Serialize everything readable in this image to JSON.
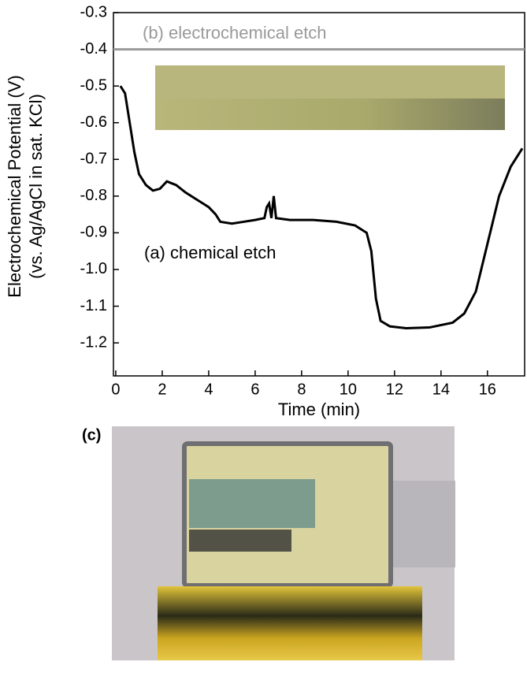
{
  "chart_data": {
    "type": "line",
    "xlabel": "Time (min)",
    "ylabel": [
      "Electrochemical Potential (V)",
      "(vs. Ag/AgCl in sat. KCl)"
    ],
    "xlim": [
      -0.1,
      17.6
    ],
    "ylim": [
      -1.29,
      -0.3
    ],
    "xticks": [
      0,
      2,
      4,
      6,
      8,
      10,
      12,
      14,
      16
    ],
    "yticks": [
      -0.3,
      -0.4,
      -0.5,
      -0.6,
      -0.7,
      -0.8,
      -0.9,
      {
        "value": -1,
        "label": "-1.0"
      },
      -1.1,
      -1.2
    ],
    "series": [
      {
        "name": "(a) chemical etch",
        "color": "#000000",
        "x": [
          0.2,
          0.4,
          0.6,
          0.8,
          1.0,
          1.3,
          1.6,
          1.9,
          2.2,
          2.6,
          3.0,
          3.5,
          4.0,
          4.3,
          4.5,
          5.0,
          5.5,
          6.0,
          6.4,
          6.5,
          6.6,
          6.7,
          6.8,
          6.9,
          7.5,
          8.5,
          9.5,
          10.3,
          10.8,
          11.0,
          11.2,
          11.4,
          11.8,
          12.5,
          13.5,
          14.5,
          15.0,
          15.5,
          16.0,
          16.5,
          17.0,
          17.5
        ],
        "values": [
          -0.5,
          -0.52,
          -0.6,
          -0.68,
          -0.74,
          -0.77,
          -0.785,
          -0.78,
          -0.76,
          -0.77,
          -0.79,
          -0.81,
          -0.83,
          -0.85,
          -0.87,
          -0.875,
          -0.87,
          -0.865,
          -0.86,
          -0.83,
          -0.82,
          -0.86,
          -0.8,
          -0.86,
          -0.865,
          -0.865,
          -0.87,
          -0.88,
          -0.9,
          -0.95,
          -1.08,
          -1.14,
          -1.155,
          -1.16,
          -1.158,
          -1.145,
          -1.12,
          -1.06,
          -0.93,
          -0.8,
          -0.72,
          -0.67
        ]
      },
      {
        "name": "(b) electrochemical etch",
        "color": "#999999",
        "x": [
          -0.1,
          17.6
        ],
        "values": [
          -0.4,
          -0.4
        ]
      }
    ]
  },
  "photo": {
    "label": "(c)"
  }
}
